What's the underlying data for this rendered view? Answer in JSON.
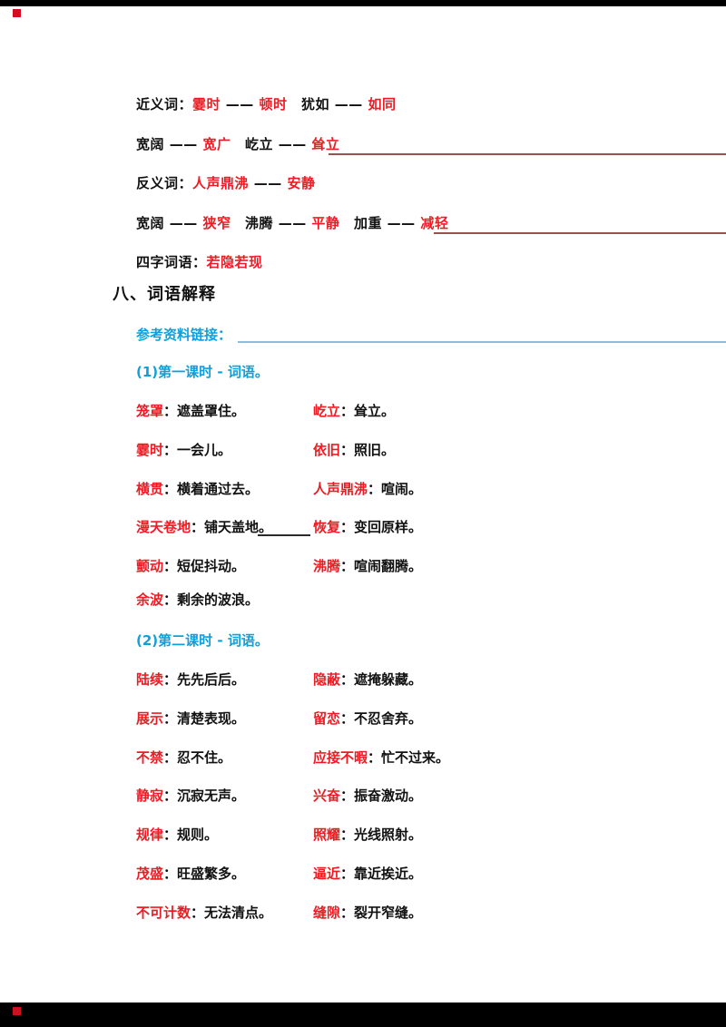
{
  "page": {
    "bg": "#ffffff",
    "edge_bar_color": "#000000",
    "corner_mark_color": "#cf1020",
    "accent_red": "#ed1c24",
    "accent_blue": "#0fa0dc",
    "rule_red": "#9c4f4f",
    "rule_blue": "#8fbcdc",
    "text_black": "#111111"
  },
  "synonym_section": {
    "lines": [
      {
        "segments": [
          {
            "text": "近义词：",
            "color": "black"
          },
          {
            "text": "霎时",
            "color": "red"
          },
          {
            "text": " —— ",
            "color": "black"
          },
          {
            "text": "顿时",
            "color": "red"
          },
          {
            "text": "　犹如 —— ",
            "color": "black"
          },
          {
            "text": "如同",
            "color": "red"
          }
        ]
      },
      {
        "segments": [
          {
            "text": "宽阔 —— ",
            "color": "black"
          },
          {
            "text": "宽广",
            "color": "red"
          },
          {
            "text": "　屹立 —— ",
            "color": "black"
          },
          {
            "text": "耸立",
            "color": "red"
          }
        ]
      },
      {
        "segments": [
          {
            "text": "反义词：",
            "color": "black"
          },
          {
            "text": "人声鼎沸",
            "color": "red"
          },
          {
            "text": " —— ",
            "color": "black"
          },
          {
            "text": "安静",
            "color": "red"
          }
        ]
      },
      {
        "segments": [
          {
            "text": "宽阔 —— ",
            "color": "black"
          },
          {
            "text": "狭窄",
            "color": "red"
          },
          {
            "text": "　沸腾 —— ",
            "color": "black"
          },
          {
            "text": "平静",
            "color": "red"
          },
          {
            "text": "　加重 —— ",
            "color": "black"
          },
          {
            "text": "减轻",
            "color": "red"
          }
        ]
      },
      {
        "segments": [
          {
            "text": "四字词语：",
            "color": "black"
          },
          {
            "text": "若隐若现",
            "color": "red"
          }
        ]
      }
    ]
  },
  "heading": {
    "text": "八、词语解释"
  },
  "reference": {
    "label": "参考资料链接："
  },
  "section1": {
    "title": "(1)第一课时 - 词语。",
    "entries": [
      [
        {
          "word": "笼罩",
          "def": "：遮盖罩住。"
        },
        {
          "word": "屹立",
          "def": "：耸立。"
        }
      ],
      [
        {
          "word": "霎时",
          "def": "：一会儿。"
        },
        {
          "word": "依旧",
          "def": "：照旧。"
        }
      ],
      [
        {
          "word": "横贯",
          "def": "：横着通过去。"
        },
        {
          "word": "人声鼎沸",
          "def": "：喧闹。"
        }
      ],
      [
        {
          "word": "漫天卷地",
          "def": "：铺天盖地。"
        },
        {
          "word": "恢复",
          "def": "：变回原样。"
        }
      ],
      [
        {
          "word": "颤动",
          "def": "：短促抖动。"
        },
        {
          "word": "沸腾",
          "def": "：喧闹翻腾。"
        }
      ]
    ],
    "extra": {
      "word": "余波",
      "def": "：剩余的波浪。"
    }
  },
  "section2": {
    "title": "(2)第二课时 - 词语。",
    "entries": [
      [
        {
          "word": "陆续",
          "def": "：先先后后。"
        },
        {
          "word": "隐蔽",
          "def": "：遮掩躲藏。"
        }
      ],
      [
        {
          "word": "展示",
          "def": "：清楚表现。"
        },
        {
          "word": "留恋",
          "def": "：不忍舍弃。"
        }
      ],
      [
        {
          "word": "不禁",
          "def": "：忍不住。"
        },
        {
          "word": "应接不暇",
          "def": "：忙不过来。"
        }
      ],
      [
        {
          "word": "静寂",
          "def": "：沉寂无声。"
        },
        {
          "word": "兴奋",
          "def": "：振奋激动。"
        }
      ],
      [
        {
          "word": "规律",
          "def": "：规则。"
        },
        {
          "word": "照耀",
          "def": "：光线照射。"
        }
      ],
      [
        {
          "word": "茂盛",
          "def": "：旺盛繁多。"
        },
        {
          "word": "逼近",
          "def": "：靠近挨近。"
        }
      ],
      [
        {
          "word": "不可计数",
          "def": "：无法清点。"
        },
        {
          "word": "缝隙",
          "def": "：裂开窄缝。"
        }
      ]
    ]
  }
}
